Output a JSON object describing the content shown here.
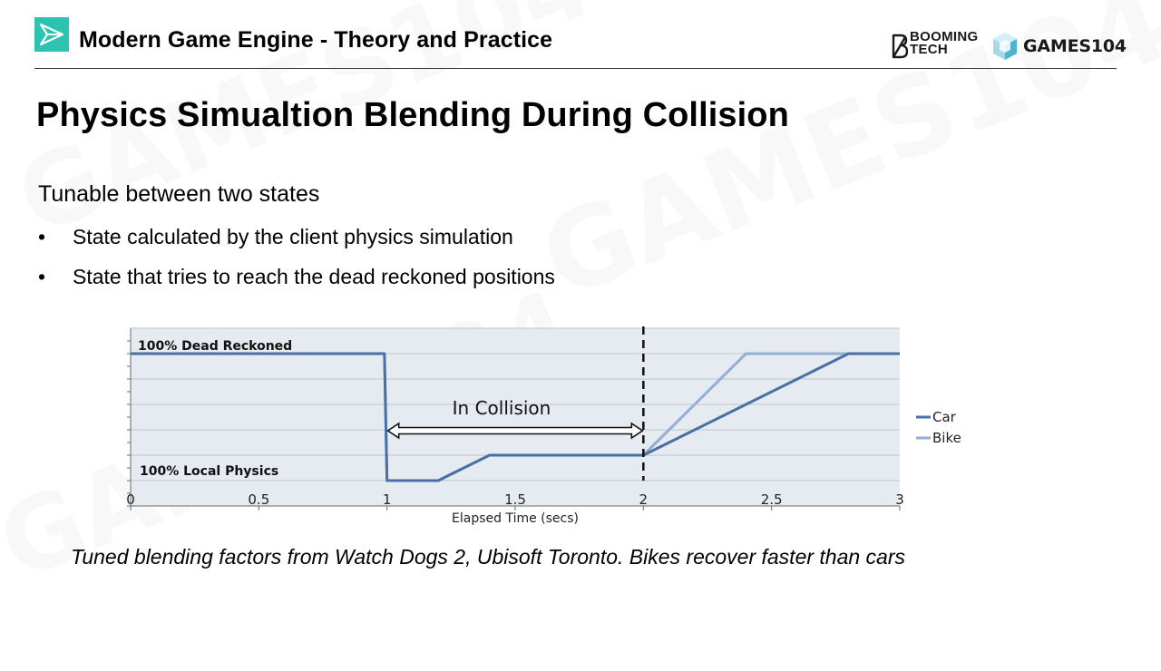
{
  "header": {
    "title": "Modern Game Engine - Theory and Practice",
    "brand_booming_line1": "BOOMING",
    "brand_booming_line2": "TECH",
    "brand_games": "GAMES104"
  },
  "slide": {
    "title": "Physics Simualtion Blending During Collision",
    "lead": "Tunable between two states",
    "bullets": [
      "State calculated by the client physics simulation",
      "State that tries to reach the dead reckoned positions"
    ],
    "caption": "Tuned blending factors from Watch Dogs 2, Ubisoft Toronto. Bikes recover faster than cars"
  },
  "colors": {
    "car": "#4a6fa5",
    "bike": "#94afd3",
    "plot_bg": "#e6ebf2",
    "grid": "#bcc4cc"
  },
  "chart_data": {
    "type": "line",
    "title": "",
    "xlabel": "Elapsed Time (secs)",
    "ylabel": "",
    "xlim": [
      0,
      3
    ],
    "ylim": [
      0,
      1
    ],
    "x_ticks": [
      "0",
      "0.5",
      "1",
      "1.5",
      "2",
      "2.5",
      "3"
    ],
    "y_levels": [
      {
        "label": "100% Dead Reckoned",
        "value": 1
      },
      {
        "label": "100% Local Physics",
        "value": 0
      }
    ],
    "grid": true,
    "legend_position": "right",
    "series": [
      {
        "name": "Car",
        "color": "#4a6fa5",
        "x": [
          0,
          0.99,
          1.0,
          1.2,
          1.4,
          2.0,
          2.8,
          3.0
        ],
        "y": [
          1.0,
          1.0,
          0.0,
          0.0,
          0.2,
          0.2,
          1.0,
          1.0
        ]
      },
      {
        "name": "Bike",
        "color": "#94afd3",
        "x": [
          0,
          0.99,
          1.0,
          1.2,
          1.4,
          2.0,
          2.4,
          3.0
        ],
        "y": [
          1.0,
          1.0,
          0.0,
          0.0,
          0.2,
          0.2,
          1.0,
          1.0
        ]
      }
    ],
    "annotations": {
      "collision_label": "In Collision",
      "collision_range": [
        1.0,
        2.0
      ],
      "collision_end_line_x": 2.0
    }
  }
}
